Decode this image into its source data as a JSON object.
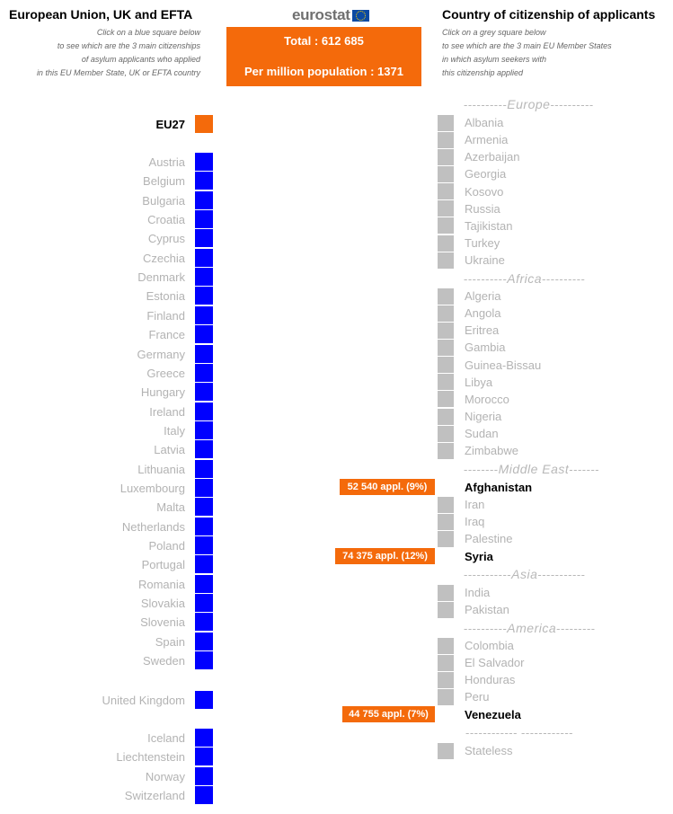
{
  "left": {
    "title": "European Union, UK and EFTA",
    "instructions": [
      "Click on a blue square below",
      "to see which are the 3 main citizenships",
      "of asylum applicants who applied",
      "in this EU Member State, UK or EFTA country"
    ]
  },
  "center": {
    "logo": "eurostat",
    "total": "Total : 612 685",
    "per_million": "Per million population : 1371"
  },
  "right": {
    "title": "Country of citizenship of applicants",
    "instructions": [
      "Click on a grey square below",
      "to see which are the 3 main EU Member States",
      "in which asylum seekers with",
      "this citizenship applied"
    ]
  },
  "eu27": "EU27",
  "countries": [
    "Austria",
    "Belgium",
    "Bulgaria",
    "Croatia",
    "Cyprus",
    "Czechia",
    "Denmark",
    "Estonia",
    "Finland",
    "France",
    "Germany",
    "Greece",
    "Hungary",
    "Ireland",
    "Italy",
    "Latvia",
    "Lithuania",
    "Luxembourg",
    "Malta",
    "Netherlands",
    "Poland",
    "Portugal",
    "Romania",
    "Slovakia",
    "Slovenia",
    "Spain",
    "Sweden"
  ],
  "uk": "United Kingdom",
  "efta": [
    "Iceland",
    "Liechtenstein",
    "Norway",
    "Switzerland"
  ],
  "regions": {
    "europe": {
      "label": "Europe",
      "dashes_left": "----------",
      "dashes_right": "----------"
    },
    "africa": {
      "label": "Africa",
      "dashes_left": "----------",
      "dashes_right": "----------"
    },
    "middle_east": {
      "label": "Middle East",
      "dashes_left": "--------",
      "dashes_right": "-------"
    },
    "asia": {
      "label": "Asia",
      "dashes_left": "-----------",
      "dashes_right": "-----------"
    },
    "america": {
      "label": "America",
      "dashes_left": "----------",
      "dashes_right": "---------"
    },
    "other": {
      "label": "------------  ------------"
    }
  },
  "citizenships": {
    "europe": [
      "Albania",
      "Armenia",
      "Azerbaijan",
      "Georgia",
      "Kosovo",
      "Russia",
      "Tajikistan",
      "Turkey",
      "Ukraine"
    ],
    "africa": [
      "Algeria",
      "Angola",
      "Eritrea",
      "Gambia",
      "Guinea-Bissau",
      "Libya",
      "Morocco",
      "Nigeria",
      "Sudan",
      "Zimbabwe"
    ],
    "middle_east": [
      "Afghanistan",
      "Iran",
      "Iraq",
      "Palestine",
      "Syria"
    ],
    "asia": [
      "India",
      "Pakistan"
    ],
    "america": [
      "Colombia",
      "El Salvador",
      "Honduras",
      "Peru",
      "Venezuela"
    ],
    "other": [
      "Stateless"
    ]
  },
  "bars": {
    "afghanistan": {
      "label": "52 540 appl. (9%)",
      "value": 52540,
      "percent": 9
    },
    "syria": {
      "label": "74 375 appl. (12%)",
      "value": 74375,
      "percent": 12
    },
    "venezuela": {
      "label": "44 755 appl. (7%)",
      "value": 44755,
      "percent": 7
    }
  },
  "colors": {
    "orange": "#f46a0b",
    "blue": "#0000ff",
    "grey": "#c0c0c0"
  },
  "icons": [
    "eu-flag-icon"
  ]
}
